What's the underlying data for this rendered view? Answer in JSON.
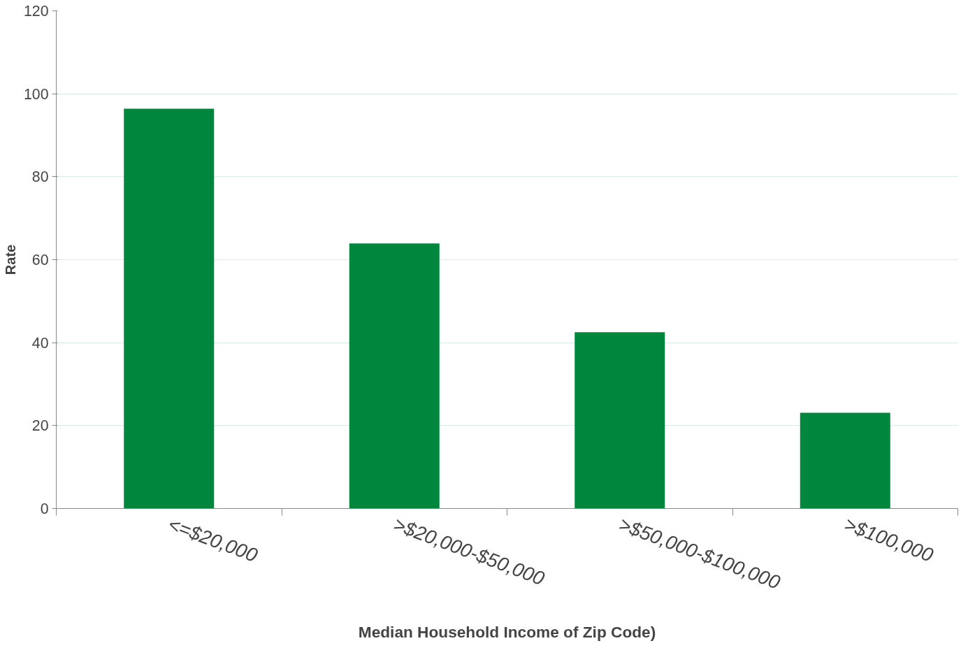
{
  "chart_data": {
    "type": "bar",
    "xlabel": "Median Household Income of Zip Code)",
    "ylabel": "Rate",
    "categories": [
      "<=$20,000",
      ">$20,000-$50,000",
      ">$50,000-$100,000",
      ">$100,000"
    ],
    "values": [
      96.4,
      63.9,
      42.5,
      23.1
    ],
    "color": "#00873e",
    "ylim": [
      0,
      120
    ],
    "yticks": [
      0,
      20,
      40,
      60,
      80,
      100,
      120
    ],
    "grid": "y"
  }
}
